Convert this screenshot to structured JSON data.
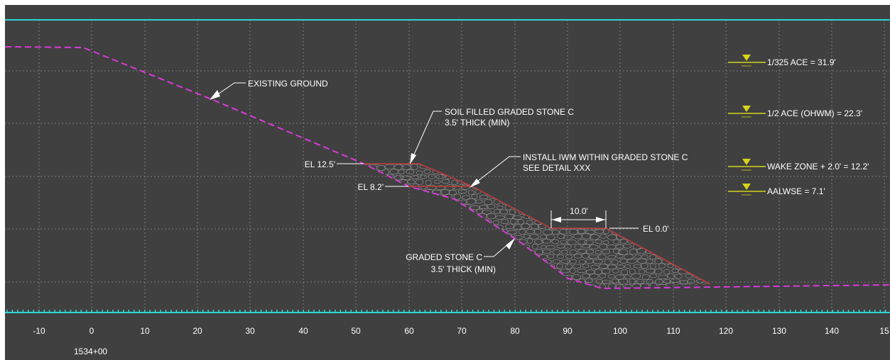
{
  "drawing": {
    "colors": {
      "background": "#404040",
      "grid": "#8a8a8a",
      "frame": "#2fd6d6",
      "existing_ground": "#d93ad9",
      "proposed_grade": "#c43a3a",
      "stone_hatch": "#9a9a9a",
      "text": "#ffffff",
      "water_symbol": "#d4d41a"
    },
    "x_axis": {
      "ticks": [
        "-10",
        "0",
        "10",
        "20",
        "30",
        "40",
        "50",
        "60",
        "70",
        "80",
        "90",
        "100",
        "110",
        "120",
        "130",
        "140",
        "15"
      ],
      "station_label": "1534+00"
    },
    "callouts": {
      "existing_ground": "EXISTING GROUND",
      "soil_filled_line1": "SOIL FILLED GRADED STONE C",
      "soil_filled_line2": "3.5' THICK (MIN)",
      "install_iwm_line1": "INSTALL IWM WITHIN GRADED STONE C",
      "install_iwm_line2": "SEE DETAIL XXX",
      "graded_stone_line1": "GRADED STONE C",
      "graded_stone_line2": "3.5' THICK (MIN)",
      "el_12_5": "EL 12.5'",
      "el_8_2": "EL 8.2'",
      "el_0_0": "EL 0.0'",
      "dim_10": "10.0'"
    },
    "water_levels": [
      {
        "label": "1/325 ACE = 31.9'"
      },
      {
        "label": "1/2 ACE (OHWM) = 22.3'"
      },
      {
        "label": "WAKE ZONE + 2.0' = 12.2'"
      },
      {
        "label": "AALWSE = 7.1'"
      }
    ]
  }
}
